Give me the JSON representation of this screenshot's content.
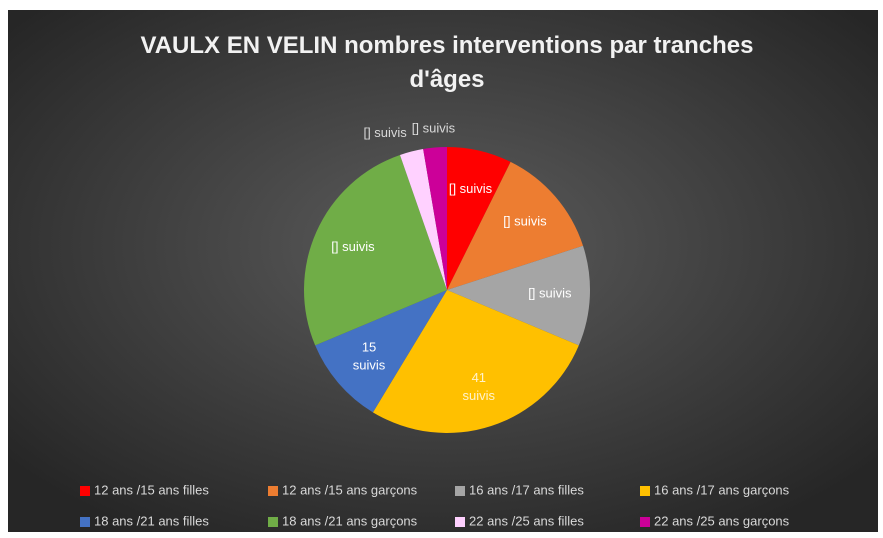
{
  "chart_data": {
    "type": "pie",
    "title": "VAULX EN VELIN nombres interventions par tranches d'âges",
    "categories": [
      "12 ans /15 ans filles",
      "12 ans /15 ans garçons",
      "16 ans /17 ans filles",
      "16 ans /17 ans garçons",
      "18 ans /21 ans filles",
      "18 ans /21 ans garçons",
      "22 ans /25 ans filles",
      "22 ans /25 ans garçons"
    ],
    "values": [
      11,
      19,
      17,
      41,
      15,
      39,
      4,
      4
    ],
    "value_labels": [
      "[] suivis",
      "[] suivis",
      "[] suivis",
      "41 suivis",
      "15 suivis",
      "[] suivis",
      "[] suivis",
      "[] suivis"
    ],
    "colors": [
      "#ff0000",
      "#ed7d31",
      "#a5a5a5",
      "#ffc000",
      "#4472c4",
      "#70ad47",
      "#ffd1ff",
      "#cc0099"
    ],
    "legend": "bottom"
  }
}
